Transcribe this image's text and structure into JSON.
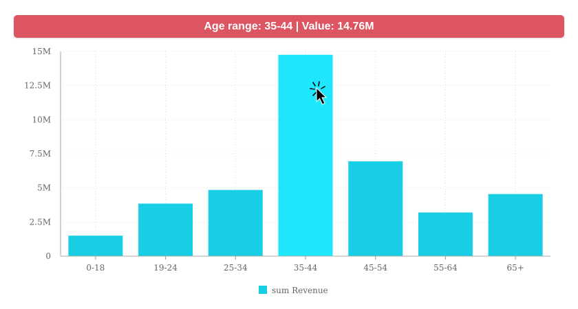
{
  "tooltip_banner": {
    "text": "Age range: 35-44 | Value: 14.76M"
  },
  "colors": {
    "banner": "#dc5561",
    "bar": "#19cfe6",
    "bar_active": "#1ee6fc",
    "grid": "#dddddd"
  },
  "chart_data": {
    "type": "bar",
    "categories": [
      "0-18",
      "19-24",
      "25-34",
      "35-44",
      "45-54",
      "55-64",
      "65+"
    ],
    "series": [
      {
        "name": "sum Revenue",
        "values": [
          1.5,
          3.85,
          4.85,
          14.76,
          6.95,
          3.2,
          4.55
        ]
      }
    ],
    "y_ticks": [
      "0",
      "2.5M",
      "5M",
      "7.5M",
      "10M",
      "12.5M",
      "15M"
    ],
    "ylim": [
      0,
      15
    ],
    "unit": "M",
    "highlighted_category": "35-44",
    "grid": true,
    "legend_position": "bottom"
  }
}
